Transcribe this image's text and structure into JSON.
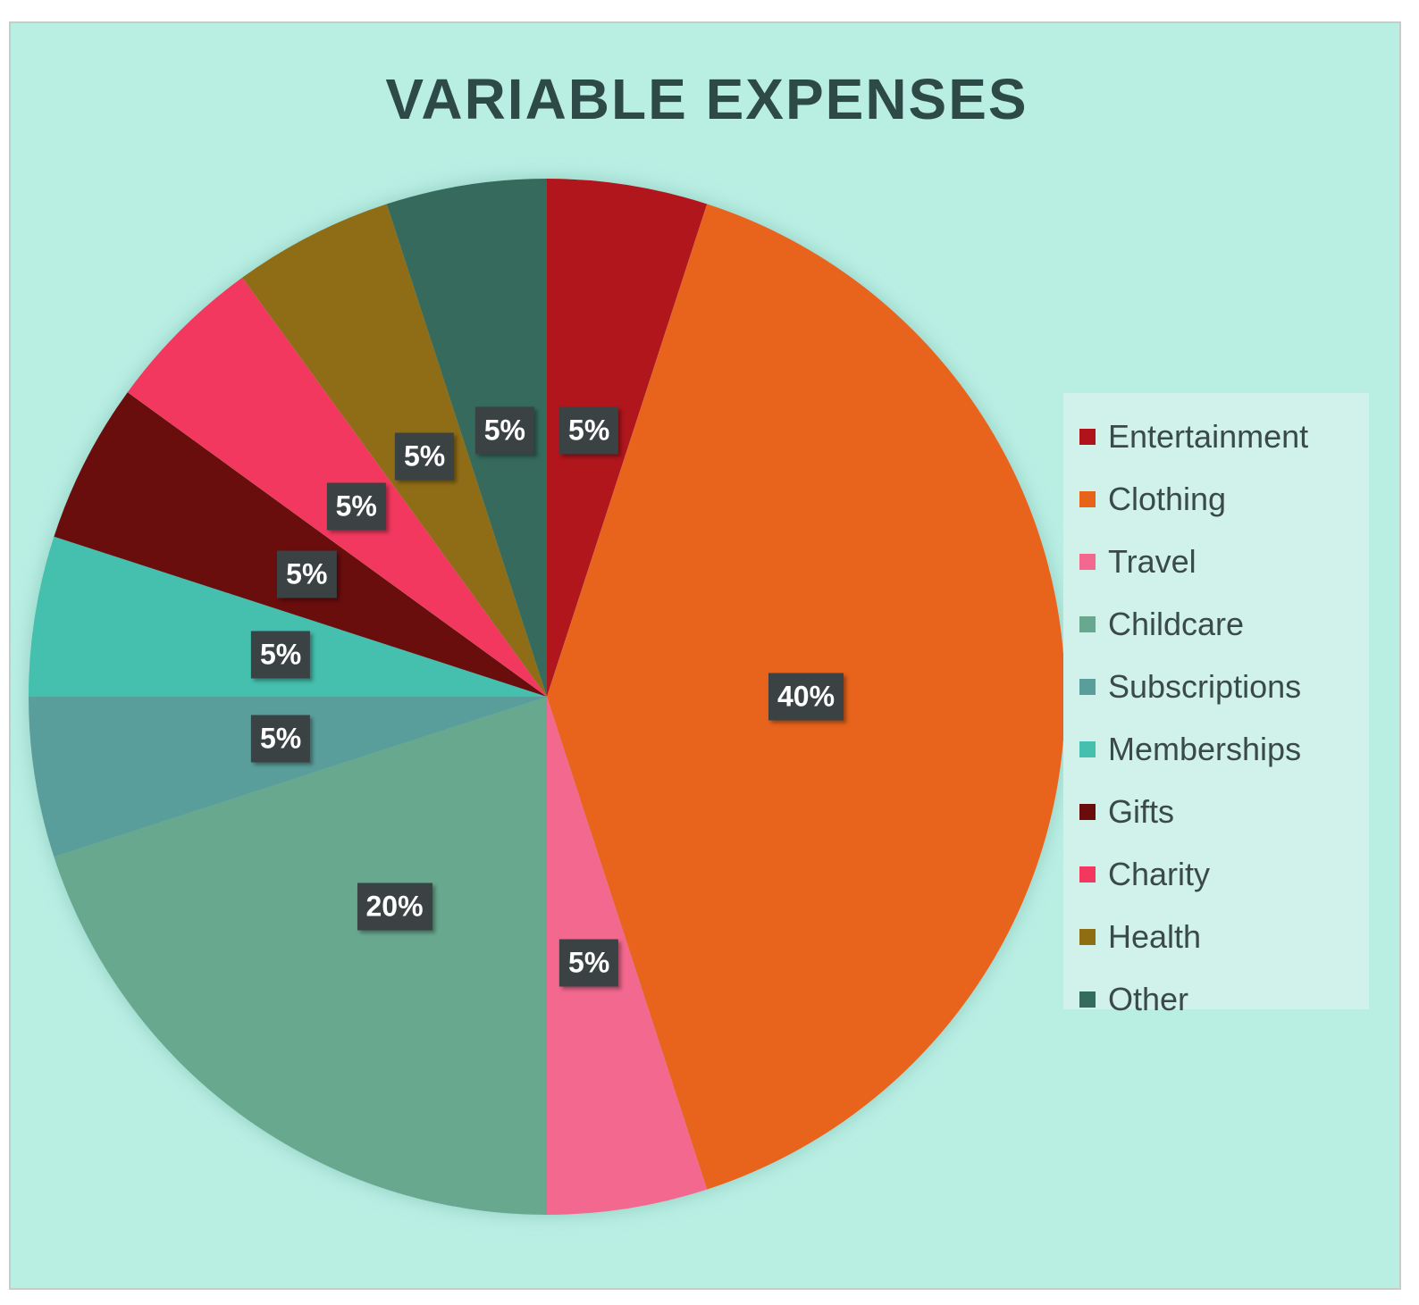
{
  "chart_data": {
    "type": "pie",
    "title": "VARIABLE EXPENSES",
    "slices": [
      {
        "label": "Entertainment",
        "value": 5,
        "display": "5%",
        "color": "#b0141a"
      },
      {
        "label": "Clothing",
        "value": 40,
        "display": "40%",
        "color": "#e8631a"
      },
      {
        "label": "Travel",
        "value": 5,
        "display": "5%",
        "color": "#f2688e"
      },
      {
        "label": "Childcare",
        "value": 20,
        "display": "20%",
        "color": "#67a88f"
      },
      {
        "label": "Subscriptions",
        "value": 5,
        "display": "5%",
        "color": "#5a9e9c"
      },
      {
        "label": "Memberships",
        "value": 5,
        "display": "5%",
        "color": "#45bfae"
      },
      {
        "label": "Gifts",
        "value": 5,
        "display": "5%",
        "color": "#6b0c0c"
      },
      {
        "label": "Charity",
        "value": 5,
        "display": "5%",
        "color": "#f2385e"
      },
      {
        "label": "Health",
        "value": 5,
        "display": "5%",
        "color": "#8f6d12"
      },
      {
        "label": "Other",
        "value": 5,
        "display": "5%",
        "color": "#356b5c"
      }
    ],
    "legend_position": "right"
  }
}
